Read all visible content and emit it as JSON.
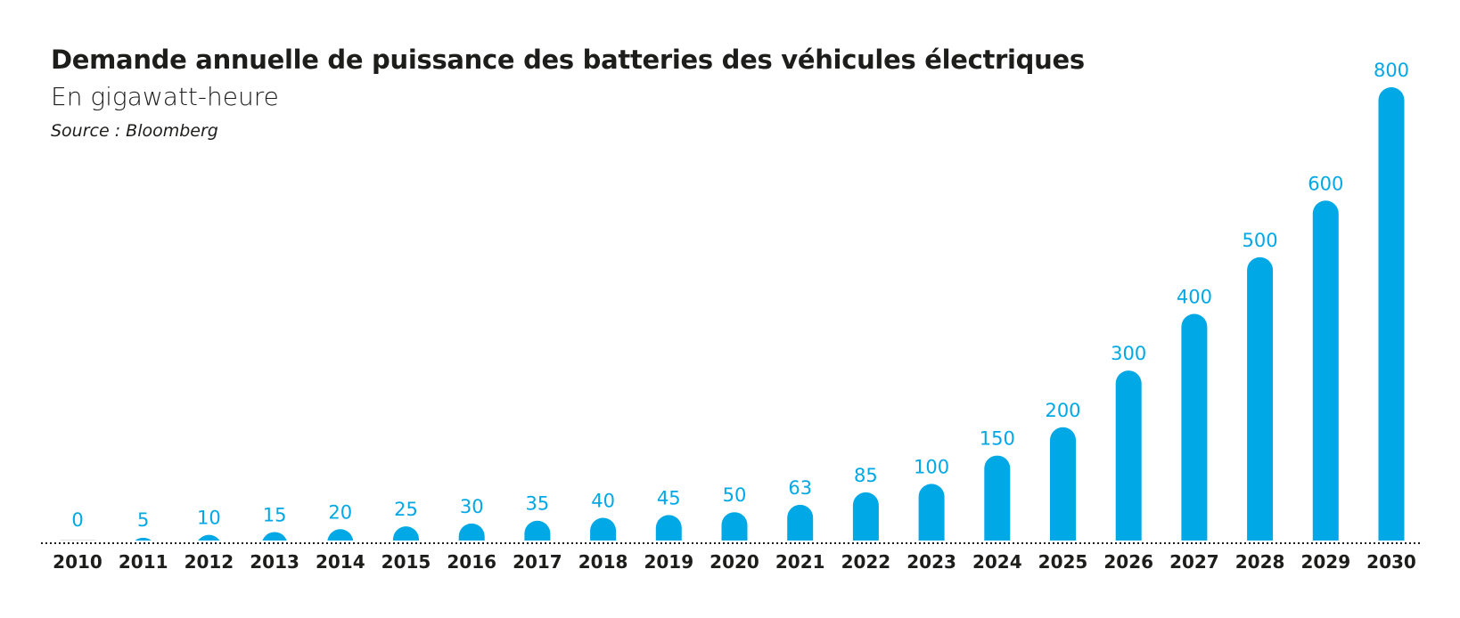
{
  "chart_data": {
    "type": "bar",
    "title": "Demande annuelle de puissance des batteries des véhicules électriques",
    "subtitle": "En gigawatt-heure",
    "source": "Source : Bloomberg",
    "xlabel": "",
    "ylabel": "",
    "ylim": [
      0,
      800
    ],
    "grid": false,
    "categories": [
      "2010",
      "2011",
      "2012",
      "2013",
      "2014",
      "2015",
      "2016",
      "2017",
      "2018",
      "2019",
      "2020",
      "2021",
      "2022",
      "2023",
      "2024",
      "2025",
      "2026",
      "2027",
      "2028",
      "2029",
      "2030"
    ],
    "values": [
      0,
      5,
      10,
      15,
      20,
      25,
      30,
      35,
      40,
      45,
      50,
      63,
      85,
      100,
      150,
      200,
      300,
      400,
      500,
      600,
      800
    ],
    "bar_color": "#00a8e6",
    "label_color": "#00a8e6"
  }
}
